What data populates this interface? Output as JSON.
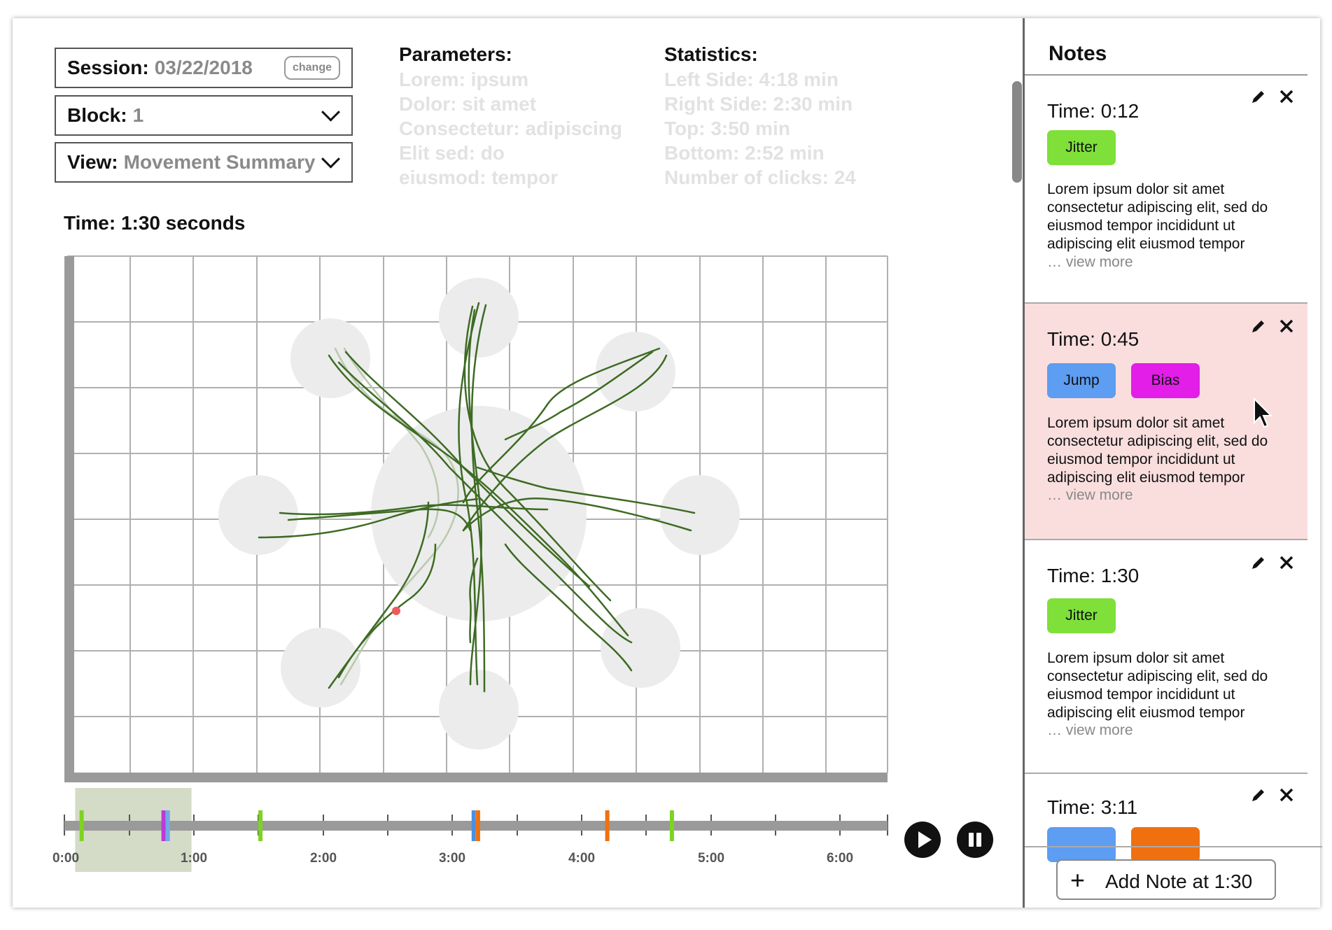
{
  "session": {
    "label": "Session:",
    "value": "03/22/2018",
    "change_label": "change"
  },
  "block": {
    "label": "Block:",
    "value": "1"
  },
  "view": {
    "label": "View:",
    "value": "Movement Summary"
  },
  "parameters": {
    "title": "Parameters:",
    "lines": [
      "Lorem: ipsum",
      "Dolor: sit amet",
      "Consectetur: adipiscing",
      "Elit sed: do",
      "eiusmod: tempor"
    ]
  },
  "statistics": {
    "title": "Statistics:",
    "lines": [
      "Left Side: 4:18 min",
      "Right Side: 2:30 min",
      "Top: 3:50 min",
      "Bottom: 2:52 min",
      "Number of clicks: 24"
    ]
  },
  "plot": {
    "title": "Time: 1:30 seconds",
    "colors": {
      "trace": "#3d6b23",
      "trace_faded": "#b9c9ad",
      "target": "#ececec",
      "grid": "#b0b0b0",
      "current_point": "#f05a5a"
    }
  },
  "timeline": {
    "tick_labels": [
      "0:00",
      "1:00",
      "2:00",
      "3:00",
      "4:00",
      "5:00",
      "6:00"
    ],
    "selection_window": {
      "start_sec": 5,
      "end_sec": 59
    },
    "duration_sec": 390,
    "markers": [
      {
        "time_sec": 8,
        "color": "#7ed321"
      },
      {
        "time_sec": 46,
        "color": "#bb3bd6"
      },
      {
        "time_sec": 48,
        "color": "#72a9e6"
      },
      {
        "time_sec": 91,
        "color": "#7ed321"
      },
      {
        "time_sec": 190,
        "color": "#4a90e2"
      },
      {
        "time_sec": 192,
        "color": "#f07010"
      },
      {
        "time_sec": 252,
        "color": "#f07010"
      },
      {
        "time_sec": 282,
        "color": "#7ed321"
      }
    ]
  },
  "notes": {
    "title": "Notes",
    "add_label": "Add Note at 1:30",
    "view_more": "… view more",
    "items": [
      {
        "time": "Time: 0:12",
        "tags": [
          {
            "label": "Jitter",
            "color": "#7fe03a"
          }
        ],
        "body": "Lorem ipsum dolor sit amet consectetur adipiscing elit, sed do eiusmod tempor incididunt ut adipiscing elit eiusmod tempor",
        "highlight": false
      },
      {
        "time": "Time: 0:45",
        "tags": [
          {
            "label": "Jump",
            "color": "#5d9df2"
          },
          {
            "label": "Bias",
            "color": "#e21ee8"
          }
        ],
        "body": "Lorem ipsum dolor sit amet consectetur adipiscing elit, sed do eiusmod tempor incididunt ut adipiscing elit eiusmod tempor",
        "highlight": true
      },
      {
        "time": "Time: 1:30",
        "tags": [
          {
            "label": "Jitter",
            "color": "#7fe03a"
          }
        ],
        "body": "Lorem ipsum dolor sit amet consectetur adipiscing elit, sed do eiusmod tempor incididunt ut adipiscing elit eiusmod tempor",
        "highlight": false
      },
      {
        "time": "Time: 3:11",
        "tags": [
          {
            "label": "",
            "color": "#5d9df2"
          },
          {
            "label": "",
            "color": "#f07010"
          }
        ],
        "body": "",
        "highlight": false
      }
    ]
  }
}
